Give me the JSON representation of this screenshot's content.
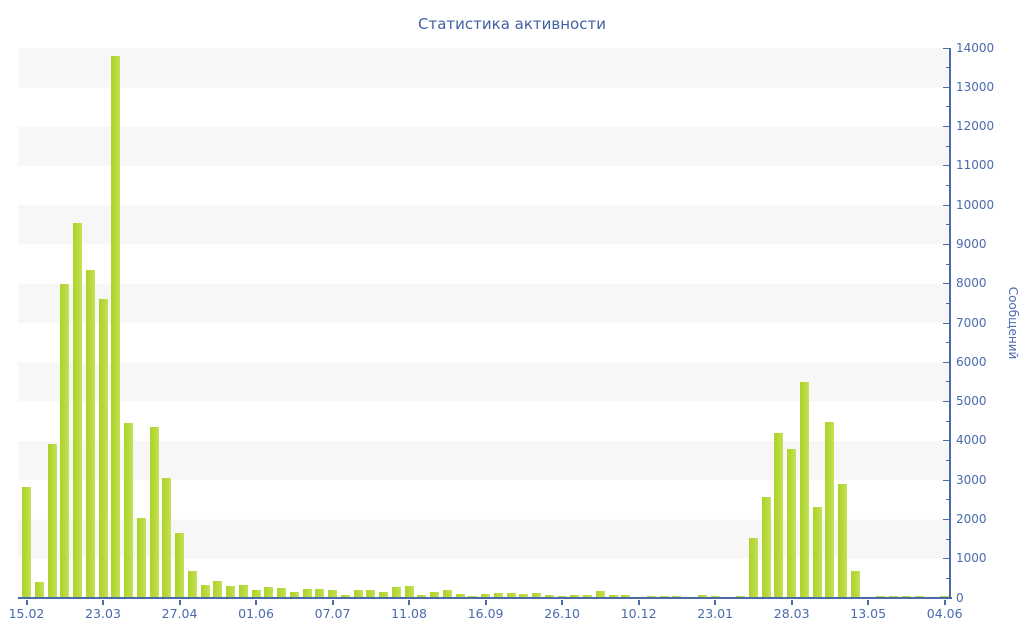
{
  "chart_data": {
    "type": "bar",
    "title": "Статистика активности",
    "ylabel": "Сообщений",
    "xlabel": "",
    "ylim": [
      0,
      14000
    ],
    "y_major_tick_step": 1000,
    "y_minor_tick_step": 500,
    "y_tick_labels": [
      "0",
      "1000",
      "2000",
      "3000",
      "4000",
      "5000",
      "6000",
      "7000",
      "8000",
      "9000",
      "10000",
      "11000",
      "12000",
      "13000",
      "14000"
    ],
    "grid": "horizontal-stripes",
    "legend": "none",
    "x_tick_labels": [
      "15.02",
      "23.03",
      "27.04",
      "01.06",
      "07.07",
      "11.08",
      "16.09",
      "26.10",
      "10.12",
      "23.01",
      "28.03",
      "13.05",
      "04.06"
    ],
    "x_tick_every": 6,
    "values": [
      2820,
      410,
      3920,
      8000,
      9550,
      8350,
      7600,
      13800,
      4450,
      2040,
      4350,
      3050,
      1650,
      690,
      320,
      430,
      300,
      320,
      210,
      270,
      260,
      150,
      230,
      230,
      195,
      85,
      195,
      210,
      145,
      270,
      305,
      70,
      145,
      195,
      100,
      60,
      100,
      120,
      120,
      100,
      135,
      70,
      50,
      85,
      85,
      170,
      70,
      75,
      35,
      50,
      50,
      50,
      35,
      70,
      50,
      35,
      50,
      1530,
      2570,
      4200,
      3790,
      5500,
      2320,
      4480,
      2900,
      690,
      25,
      50,
      40,
      50,
      40,
      35,
      45
    ]
  },
  "colors": {
    "bar": "#b2d835",
    "axis": "#4a6aa8",
    "tick_label": "#4a6aad",
    "title": "#41619f",
    "stripe": "#f7f7f7",
    "background": "#ffffff"
  }
}
